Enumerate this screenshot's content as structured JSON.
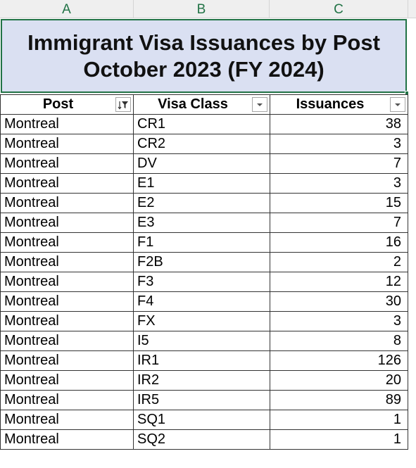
{
  "column_headers": [
    "A",
    "B",
    "C"
  ],
  "title": {
    "line1": "Immigrant Visa Issuances by Post",
    "line2": "October 2023 (FY 2024)"
  },
  "table": {
    "headers": [
      "Post",
      "Visa Class",
      "Issuances"
    ],
    "filter_icons": [
      "filter-active-icon",
      "dropdown-arrow-icon",
      "dropdown-arrow-icon"
    ],
    "rows": [
      {
        "post": "Montreal",
        "visa_class": "CR1",
        "issuances": "38"
      },
      {
        "post": "Montreal",
        "visa_class": "CR2",
        "issuances": "3"
      },
      {
        "post": "Montreal",
        "visa_class": "DV",
        "issuances": "7"
      },
      {
        "post": "Montreal",
        "visa_class": "E1",
        "issuances": "3"
      },
      {
        "post": "Montreal",
        "visa_class": "E2",
        "issuances": "15"
      },
      {
        "post": "Montreal",
        "visa_class": "E3",
        "issuances": "7"
      },
      {
        "post": "Montreal",
        "visa_class": "F1",
        "issuances": "16"
      },
      {
        "post": "Montreal",
        "visa_class": "F2B",
        "issuances": "2"
      },
      {
        "post": "Montreal",
        "visa_class": "F3",
        "issuances": "12"
      },
      {
        "post": "Montreal",
        "visa_class": "F4",
        "issuances": "30"
      },
      {
        "post": "Montreal",
        "visa_class": "FX",
        "issuances": "3"
      },
      {
        "post": "Montreal",
        "visa_class": "I5",
        "issuances": "8"
      },
      {
        "post": "Montreal",
        "visa_class": "IR1",
        "issuances": "126"
      },
      {
        "post": "Montreal",
        "visa_class": "IR2",
        "issuances": "20"
      },
      {
        "post": "Montreal",
        "visa_class": "IR5",
        "issuances": "89"
      },
      {
        "post": "Montreal",
        "visa_class": "SQ1",
        "issuances": "1"
      },
      {
        "post": "Montreal",
        "visa_class": "SQ2",
        "issuances": "1"
      }
    ]
  },
  "colors": {
    "title_fill": "#dae0f2",
    "selection_border": "#217346",
    "column_header_text": "#217346"
  }
}
